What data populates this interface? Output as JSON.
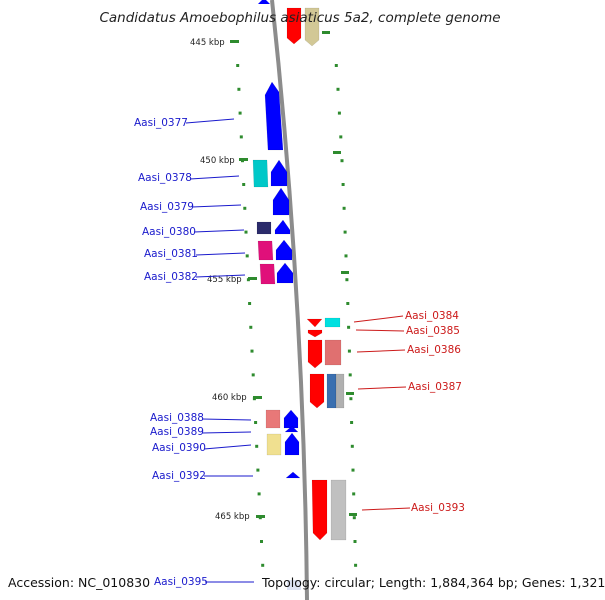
{
  "title": "Candidatus Amoebophilus asiaticus 5a2, complete genome",
  "accession": "Accession: NC_010830",
  "topology": "Topology: circular; Length: 1,884,364 bp; Genes: 1,321",
  "colors": {
    "backbone": "#999999",
    "tick": "#2e8b2e",
    "label_left": "#1a1acc",
    "label_right": "#cc1a1a"
  },
  "ticks": [
    {
      "label": "445 kbp"
    },
    {
      "label": "450 kbp"
    },
    {
      "label": "455 kbp"
    },
    {
      "label": "460 kbp"
    },
    {
      "label": "465 kbp"
    }
  ],
  "left_labels": [
    {
      "name": "Aasi_0377"
    },
    {
      "name": "Aasi_0378"
    },
    {
      "name": "Aasi_0379"
    },
    {
      "name": "Aasi_0380"
    },
    {
      "name": "Aasi_0381"
    },
    {
      "name": "Aasi_0382"
    },
    {
      "name": "Aasi_0388"
    },
    {
      "name": "Aasi_0389"
    },
    {
      "name": "Aasi_0390"
    },
    {
      "name": "Aasi_0392"
    },
    {
      "name": "Aasi_0395"
    }
  ],
  "right_labels": [
    {
      "name": "Aasi_0384"
    },
    {
      "name": "Aasi_0385"
    },
    {
      "name": "Aasi_0386"
    },
    {
      "name": "Aasi_0387"
    },
    {
      "name": "Aasi_0393"
    }
  ],
  "genes": [
    {
      "strand": "-",
      "color": "#ff0000"
    },
    {
      "strand": "-",
      "color": "#d2c896"
    },
    {
      "strand": "+",
      "color": "#0000ff"
    },
    {
      "strand": "+",
      "color": "#0000ff"
    },
    {
      "strand": "+",
      "color": "#00c8c8"
    },
    {
      "strand": "+",
      "color": "#0000ff"
    },
    {
      "strand": "+",
      "color": "#0000ff"
    },
    {
      "strand": "+",
      "color": "#2b2b6b"
    },
    {
      "strand": "+",
      "color": "#0000ff"
    },
    {
      "strand": "+",
      "color": "#e0107a"
    },
    {
      "strand": "+",
      "color": "#0000ff"
    },
    {
      "strand": "+",
      "color": "#e0107a"
    },
    {
      "strand": "-",
      "color": "#ff0000"
    },
    {
      "strand": "-",
      "color": "#00e0e0"
    },
    {
      "strand": "-",
      "color": "#ff0000"
    },
    {
      "strand": "-",
      "color": "#ff0000"
    },
    {
      "strand": "-",
      "color": "#e07070"
    },
    {
      "strand": "-",
      "color": "#ff0000"
    },
    {
      "strand": "-",
      "color": "#3a6fb0"
    },
    {
      "strand": "-",
      "color": "#b0b0b0"
    },
    {
      "strand": "+",
      "color": "#e87878"
    },
    {
      "strand": "+",
      "color": "#0000ff"
    },
    {
      "strand": "+",
      "color": "#0000ff"
    },
    {
      "strand": "+",
      "color": "#f0e090"
    },
    {
      "strand": "+",
      "color": "#0000ff"
    },
    {
      "strand": "+",
      "color": "#0000ff"
    },
    {
      "strand": "-",
      "color": "#ff0000"
    },
    {
      "strand": "-",
      "color": "#c0c0c0"
    }
  ]
}
